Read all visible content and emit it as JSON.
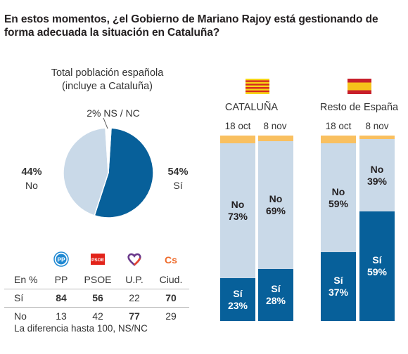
{
  "question": "En estos momentos, ¿el Gobierno de Mariano Rajoy está gestionando de forma adecuada la situación en Cataluña?",
  "colors": {
    "si": "#07609a",
    "no": "#c9d9e8",
    "nsnc": "#f9c060",
    "text": "#231f20"
  },
  "pie": {
    "title_line1": "Total población española",
    "title_line2": "(incluye a Cataluña)",
    "nsnc_label": "2% NS / NC",
    "no_pct": "44%",
    "no_label": "No",
    "si_pct": "54%",
    "si_label": "Sí"
  },
  "chart_data": [
    {
      "type": "pie",
      "title": "Total población española (incluye a Cataluña)",
      "categories": [
        "Sí",
        "No",
        "NS / NC"
      ],
      "values": [
        54,
        44,
        2
      ]
    },
    {
      "type": "bar",
      "stacked": true,
      "groups": [
        {
          "name": "CATALUÑA",
          "categories": [
            "18 oct",
            "8 nov"
          ],
          "series": [
            {
              "name": "Sí",
              "values": [
                23,
                28
              ]
            },
            {
              "name": "No",
              "values": [
                73,
                69
              ]
            },
            {
              "name": "NS / NC",
              "values": [
                4,
                3
              ]
            }
          ]
        },
        {
          "name": "Resto de España",
          "categories": [
            "18 oct",
            "8 nov"
          ],
          "series": [
            {
              "name": "Sí",
              "values": [
                37,
                59
              ]
            },
            {
              "name": "No",
              "values": [
                59,
                39
              ]
            },
            {
              "name": "NS / NC",
              "values": [
                4,
                2
              ]
            }
          ]
        }
      ],
      "ylim": [
        0,
        100
      ]
    }
  ],
  "bars": {
    "groups": [
      {
        "label": "CATALUÑA",
        "flag": "catalonia-flag-icon",
        "columns": [
          {
            "date": "18 oct",
            "si": 23,
            "no": 73,
            "ns": 4,
            "si_text": "Sí",
            "si_pct": "23%",
            "no_text": "No",
            "no_pct": "73%"
          },
          {
            "date": "8 nov",
            "si": 28,
            "no": 69,
            "ns": 3,
            "si_text": "Sí",
            "si_pct": "28%",
            "no_text": "No",
            "no_pct": "69%"
          }
        ]
      },
      {
        "label": "Resto de España",
        "flag": "spain-flag-icon",
        "columns": [
          {
            "date": "18 oct",
            "si": 37,
            "no": 59,
            "ns": 4,
            "si_text": "Sí",
            "si_pct": "37%",
            "no_text": "No",
            "no_pct": "59%"
          },
          {
            "date": "8 nov",
            "si": 59,
            "no": 39,
            "ns": 2,
            "si_text": "Sí",
            "si_pct": "59%",
            "no_text": "No",
            "no_pct": "39%"
          }
        ]
      }
    ]
  },
  "table": {
    "header": [
      "En %",
      "PP",
      "PSOE",
      "U.P.",
      "Ciud."
    ],
    "logos": [
      "pp-logo-icon",
      "psoe-logo-icon",
      "podemos-logo-icon",
      "ciudadanos-logo-icon"
    ],
    "logo_text": [
      "PP",
      "PSOE",
      "",
      "Cs"
    ],
    "rows": [
      {
        "label": "Sí",
        "values": [
          "84",
          "56",
          "22",
          "70"
        ]
      },
      {
        "label": "No",
        "values": [
          "13",
          "42",
          "77",
          "29"
        ]
      }
    ]
  },
  "footnote": "La diferencia hasta 100, NS/NC"
}
